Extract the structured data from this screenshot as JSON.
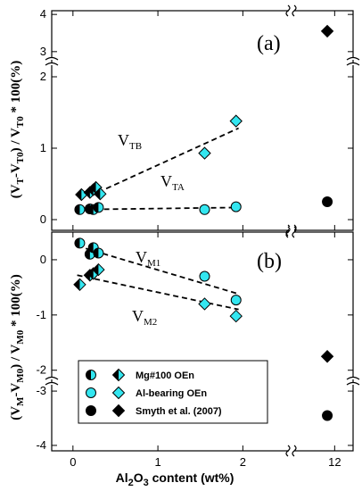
{
  "chart_data": [
    {
      "panel": "(a)",
      "type": "scatter",
      "ylabel": "(V_T-V_T0) / V_T0 * 100(%)",
      "yticks_lower": [
        "0",
        "1",
        "2"
      ],
      "yticks_upper": [
        "3",
        "4"
      ],
      "ylim_lower": [
        -0.15,
        2.15
      ],
      "ylim_upper": [
        2.9,
        4.1
      ],
      "series": [
        {
          "name": "V_TB",
          "marker": "diamond",
          "style": "half-filled",
          "group": "Mg#100 OEn",
          "points": [
            [
              0.1,
              0.35
            ],
            [
              0.2,
              0.38
            ],
            [
              0.24,
              0.42
            ],
            [
              0.27,
              0.45
            ],
            [
              0.32,
              0.36
            ]
          ]
        },
        {
          "name": "V_TB",
          "marker": "diamond",
          "style": "cyan",
          "group": "Al-bearing OEn",
          "points": [
            [
              1.55,
              0.93
            ],
            [
              1.92,
              1.38
            ]
          ]
        },
        {
          "name": "V_TA",
          "marker": "circle",
          "style": "half-filled",
          "group": "Mg#100 OEn",
          "points": [
            [
              0.08,
              0.14
            ],
            [
              0.2,
              0.15
            ],
            [
              0.24,
              0.14
            ],
            [
              0.3,
              0.17
            ]
          ]
        },
        {
          "name": "V_TA",
          "marker": "circle",
          "style": "cyan",
          "group": "Al-bearing OEn",
          "points": [
            [
              1.55,
              0.14
            ],
            [
              1.92,
              0.18
            ]
          ]
        },
        {
          "name": "Smyth et al. (2007)",
          "marker": "diamond",
          "style": "black",
          "points": [
            [
              11.8,
              3.55
            ]
          ]
        },
        {
          "name": "Smyth et al. (2007)",
          "marker": "circle",
          "style": "black",
          "points": [
            [
              11.8,
              0.25
            ]
          ]
        }
      ],
      "trendlines": [
        {
          "name": "V_TB",
          "x": [
            0.2,
            1.95
          ],
          "y": [
            0.33,
            1.28
          ]
        },
        {
          "name": "V_TA",
          "x": [
            0.05,
            1.95
          ],
          "y": [
            0.14,
            0.17
          ]
        }
      ]
    },
    {
      "panel": "(b)",
      "type": "scatter",
      "ylabel": "(V_M-V_M0) / V_M0 * 100(%)",
      "yticks_lower": [
        "-3",
        "-4"
      ],
      "yticks_upper": [
        "0",
        "-1",
        "-2"
      ],
      "ylim_upper": [
        -2.15,
        0.5
      ],
      "ylim_lower": [
        -4.1,
        -2.9
      ],
      "series": [
        {
          "name": "V_M1",
          "marker": "circle",
          "style": "half-filled",
          "group": "Mg#100 OEn",
          "points": [
            [
              0.08,
              0.3
            ],
            [
              0.2,
              0.1
            ],
            [
              0.24,
              0.22
            ],
            [
              0.3,
              0.12
            ]
          ]
        },
        {
          "name": "V_M1",
          "marker": "circle",
          "style": "cyan",
          "group": "Al-bearing OEn",
          "points": [
            [
              1.55,
              -0.3
            ],
            [
              1.92,
              -0.73
            ]
          ]
        },
        {
          "name": "V_M2",
          "marker": "diamond",
          "style": "half-filled",
          "group": "Mg#100 OEn",
          "points": [
            [
              0.08,
              -0.45
            ],
            [
              0.2,
              -0.28
            ],
            [
              0.24,
              -0.25
            ],
            [
              0.3,
              -0.18
            ]
          ]
        },
        {
          "name": "V_M2",
          "marker": "diamond",
          "style": "cyan",
          "group": "Al-bearing OEn",
          "points": [
            [
              1.55,
              -0.8
            ],
            [
              1.92,
              -1.02
            ]
          ]
        },
        {
          "name": "Smyth et al. (2007)",
          "marker": "diamond",
          "style": "black",
          "points": [
            [
              11.8,
              -1.75
            ]
          ]
        },
        {
          "name": "Smyth et al. (2007)",
          "marker": "circle",
          "style": "black",
          "points": [
            [
              11.8,
              -3.45
            ]
          ]
        }
      ],
      "trendlines": [
        {
          "name": "V_M1",
          "x": [
            0.05,
            1.95
          ],
          "y": [
            0.25,
            -0.62
          ]
        },
        {
          "name": "V_M2",
          "x": [
            0.05,
            1.95
          ],
          "y": [
            -0.28,
            -0.9
          ]
        }
      ]
    }
  ],
  "x_axis": {
    "label": "Al2O3 content (wt%)",
    "ticks_main": [
      "0",
      "1",
      "2"
    ],
    "ticks_broken": [
      "12"
    ],
    "xlim_main": [
      -0.25,
      2.5
    ],
    "xlim_broken": [
      11.0,
      12.5
    ]
  },
  "labels": {
    "panel_a": "(a)",
    "panel_b": "(b)",
    "VTB": {
      "main": "V",
      "sub": "TB"
    },
    "VTA": {
      "main": "V",
      "sub": "TA"
    },
    "VM1": {
      "main": "V",
      "sub": "M1"
    },
    "VM2": {
      "main": "V",
      "sub": "M2"
    },
    "ylabel_a": {
      "p1": "(V",
      "s1": "T",
      "p2": "-V",
      "s2": "T0",
      "p3": ") / V",
      "s3": "T0",
      "p4": " * 100(%)"
    },
    "ylabel_b": {
      "p1": "(V",
      "s1": "M",
      "p2": "-V",
      "s2": "M0",
      "p3": ") / V",
      "s3": "M0",
      "p4": " * 100(%)"
    },
    "xlabel": {
      "p1": "Al",
      "s1": "2",
      "p2": "O",
      "s2": "3",
      "p3": " content (wt%)"
    }
  },
  "legend": {
    "entries": [
      {
        "label": "Mg#100 OEn",
        "style": "half-filled"
      },
      {
        "label": "Al-bearing OEn",
        "style": "cyan"
      },
      {
        "label": "Smyth et al. (2007)",
        "style": "black"
      }
    ]
  },
  "colors": {
    "cyan": "#33e6f0",
    "black": "#000000",
    "white": "#ffffff"
  }
}
